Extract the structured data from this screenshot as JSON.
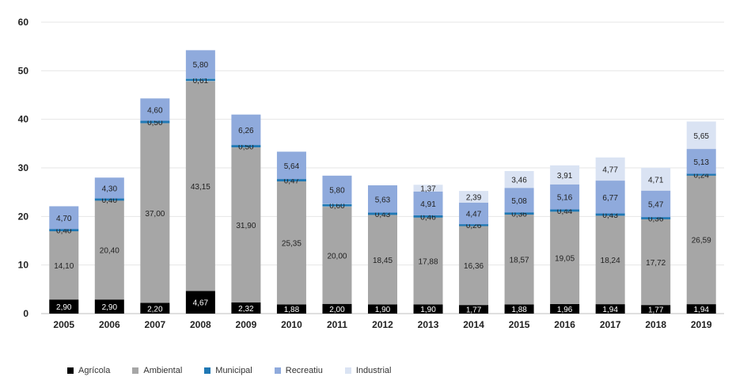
{
  "chart_data": {
    "type": "bar",
    "stacked": true,
    "categories": [
      "2005",
      "2006",
      "2007",
      "2008",
      "2009",
      "2010",
      "2011",
      "2012",
      "2013",
      "2014",
      "2015",
      "2016",
      "2017",
      "2018",
      "2019"
    ],
    "ylim": [
      0,
      60
    ],
    "yticks": [
      "0",
      "10",
      "20",
      "30",
      "40",
      "50",
      "60"
    ],
    "grid": true,
    "legend_position": "bottom-left",
    "series": [
      {
        "name": "Agrícola",
        "color": "#000000",
        "values": [
          2.9,
          2.9,
          2.2,
          4.67,
          2.32,
          1.88,
          2.0,
          1.9,
          1.9,
          1.77,
          1.88,
          1.96,
          1.94,
          1.77,
          1.94
        ],
        "labels": [
          "2,90",
          "2,90",
          "2,20",
          "4,67",
          "2,32",
          "1,88",
          "2,00",
          "1,90",
          "1,90",
          "1,77",
          "1,88",
          "1,96",
          "1,94",
          "1,77",
          "1,94"
        ]
      },
      {
        "name": "Ambiental",
        "color": "#a6a6a6",
        "values": [
          14.1,
          20.4,
          37.0,
          43.15,
          31.9,
          25.35,
          20.0,
          18.45,
          17.88,
          16.36,
          18.57,
          19.05,
          18.24,
          17.72,
          26.59
        ],
        "labels": [
          "14,10",
          "20,40",
          "37,00",
          "43,15",
          "31,90",
          "25,35",
          "20,00",
          "18,45",
          "17,88",
          "16,36",
          "18,57",
          "19,05",
          "18,24",
          "17,72",
          "26,59"
        ]
      },
      {
        "name": "Municipal",
        "color": "#1f78b4",
        "values": [
          0.4,
          0.4,
          0.5,
          0.61,
          0.5,
          0.47,
          0.6,
          0.43,
          0.46,
          0.26,
          0.36,
          0.44,
          0.43,
          0.36,
          0.24
        ],
        "labels": [
          "0,40",
          "0,40",
          "0,50",
          "0,61",
          "0,50",
          "0,47",
          "0,60",
          "0,43",
          "0,46",
          "0,26",
          "0,36",
          "0,44",
          "0,43",
          "0,36",
          "0,24"
        ]
      },
      {
        "name": "Recreatiu",
        "color": "#8faadc",
        "values": [
          4.7,
          4.3,
          4.6,
          5.8,
          6.26,
          5.64,
          5.8,
          5.63,
          4.91,
          4.47,
          5.08,
          5.16,
          6.77,
          5.47,
          5.13
        ],
        "labels": [
          "4,70",
          "4,30",
          "4,60",
          "5,80",
          "6,26",
          "5,64",
          "5,80",
          "5,63",
          "4,91",
          "4,47",
          "5,08",
          "5,16",
          "6,77",
          "5,47",
          "5,13"
        ]
      },
      {
        "name": "Industrial",
        "color": "#dae3f3",
        "values": [
          0,
          0,
          0,
          0,
          0,
          0,
          0,
          0,
          1.37,
          2.39,
          3.46,
          3.91,
          4.77,
          4.71,
          5.65
        ],
        "labels": [
          "",
          "",
          "",
          "",
          "",
          "",
          "",
          "",
          "1,37",
          "2,39",
          "3,46",
          "3,91",
          "4,77",
          "4,71",
          "5,65"
        ]
      }
    ]
  }
}
